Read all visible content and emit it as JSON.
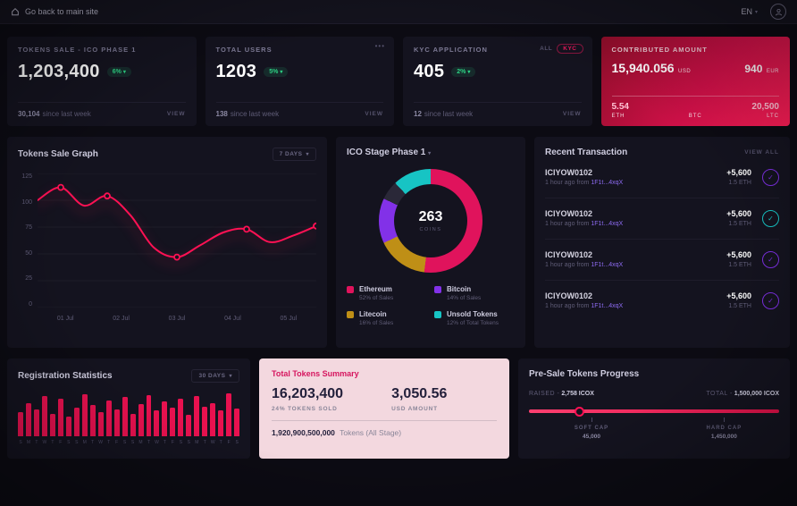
{
  "icons": {
    "caret_down": "▾",
    "menu_dots": "•••",
    "check": "✓"
  },
  "topbar": {
    "back_label": "Go back to main site",
    "lang": "EN"
  },
  "stat_cards": [
    {
      "title": "TOKENS SALE - ICO PHASE 1",
      "value": "1,203,400",
      "badge": "6%",
      "sub_value": "30,104",
      "sub_label": "since last week",
      "action": "VIEW"
    },
    {
      "title": "TOTAL USERS",
      "value": "1203",
      "badge": "5%",
      "sub_value": "138",
      "sub_label": "since last week",
      "action": "VIEW"
    },
    {
      "title": "KYC APPLICATION",
      "value": "405",
      "badge": "2%",
      "sub_value": "12",
      "sub_label": "since last week",
      "action": "VIEW",
      "filter_all": "ALL",
      "filter_kyc": "KYC"
    }
  ],
  "contributed": {
    "title": "CONTRIBUTED AMOUNT",
    "usd_value": "15,940.056",
    "usd_unit": "USD",
    "eur_value": "940",
    "eur_unit": "EUR",
    "coins": [
      {
        "value": "5.54",
        "unit": "ETH"
      },
      {
        "value": "",
        "unit": "BTC"
      },
      {
        "value": "20,500",
        "unit": "LTC"
      }
    ]
  },
  "sale_graph": {
    "title": "Tokens Sale Graph",
    "range": "7 DAYS"
  },
  "ico_stage": {
    "title": "ICO Stage Phase 1",
    "center_value": "263",
    "center_label": "COINS"
  },
  "transactions": {
    "title": "Recent Transaction",
    "action": "VIEW ALL",
    "items": [
      {
        "id": "ICIYOW0102",
        "meta": "1 hour ago from",
        "meta_link": "1F1t...4xqX",
        "amount": "+5,600",
        "eth": "1.5 ETH",
        "icon_color": "#7b2fe0"
      },
      {
        "id": "ICIYOW0102",
        "meta": "1 hour ago from",
        "meta_link": "1F1t...4xqX",
        "amount": "+5,600",
        "eth": "1.5 ETH",
        "icon_color": "#17c4c4"
      },
      {
        "id": "ICIYOW0102",
        "meta": "1 hour ago from",
        "meta_link": "1F1t...4xqX",
        "amount": "+5,600",
        "eth": "1.5 ETH",
        "icon_color": "#7b2fe0"
      },
      {
        "id": "ICIYOW0102",
        "meta": "1 hour ago from",
        "meta_link": "1F1t...4xqX",
        "amount": "+5,600",
        "eth": "1.5 ETH",
        "icon_color": "#7b2fe0"
      }
    ]
  },
  "registration": {
    "title": "Registration Statistics",
    "range": "30 DAYS"
  },
  "summary": {
    "title": "Total Tokens Summary",
    "tokens_value": "16,203,400",
    "tokens_label": "24% TOKENS SOLD",
    "usd_value": "3,050.56",
    "usd_label": "USD AMOUNT",
    "total_value": "1,920,900,500,000",
    "total_label": "Tokens (All Stage)"
  },
  "progress": {
    "title": "Pre-Sale Tokens Progress",
    "raised_label": "RAISED -",
    "raised_value": "2,758 ICOX",
    "total_label": "TOTAL -",
    "total_value": "1,500,000 ICOX",
    "soft_cap_label": "SOFT CAP",
    "soft_cap_value": "45,000",
    "hard_cap_label": "HARD CAP",
    "hard_cap_value": "1,450,000",
    "knob_pct": 20,
    "soft_pct": 25,
    "hard_pct": 78
  },
  "chart_data": [
    {
      "type": "line",
      "title": "Tokens Sale Graph",
      "x": [
        "01 Jul",
        "02 Jul",
        "03 Jul",
        "04 Jul",
        "05 Jul"
      ],
      "yticks": [
        125,
        100,
        75,
        50,
        25,
        0
      ],
      "ylim": [
        0,
        125
      ],
      "grid": true,
      "series": [
        {
          "name": "Tokens Sale",
          "color": "#ff1154",
          "values_detail": [
            100,
            112,
            95,
            104,
            86,
            56,
            47,
            58,
            70,
            73,
            61,
            67,
            76
          ],
          "marker_indices": [
            1,
            3,
            6,
            9,
            12
          ]
        }
      ]
    },
    {
      "type": "pie",
      "title": "ICO Stage Phase 1",
      "donut": true,
      "center_value": "263",
      "center_label": "COINS",
      "unallocated_color": "#2a2838",
      "slices": [
        {
          "label": "Ethereum",
          "detail": "52% of Sales",
          "value": 52,
          "color": "#e0135c"
        },
        {
          "label": "Bitcoin",
          "detail": "14% of Sales",
          "value": 14,
          "color": "#8231e8"
        },
        {
          "label": "Litecoin",
          "detail": "16% of Sales",
          "value": 16,
          "color": "#bf8f16"
        },
        {
          "label": "Unsold Tokens",
          "detail": "12% of Total Tokens",
          "value": 12,
          "color": "#17c4c4"
        }
      ]
    },
    {
      "type": "bar",
      "title": "Registration Statistics",
      "color": "#e8114f",
      "ylim": [
        0,
        100
      ],
      "categories": [
        "S",
        "M",
        "T",
        "W",
        "T",
        "F",
        "S",
        "S",
        "M",
        "T",
        "W",
        "T",
        "F",
        "S",
        "S",
        "M",
        "T",
        "W",
        "T",
        "F",
        "S",
        "S",
        "M",
        "T",
        "W",
        "T",
        "F",
        "S"
      ],
      "values": [
        55,
        75,
        60,
        90,
        50,
        85,
        45,
        65,
        95,
        70,
        55,
        80,
        60,
        88,
        50,
        72,
        92,
        58,
        78,
        64,
        85,
        48,
        90,
        66,
        74,
        58,
        96,
        62
      ]
    }
  ]
}
